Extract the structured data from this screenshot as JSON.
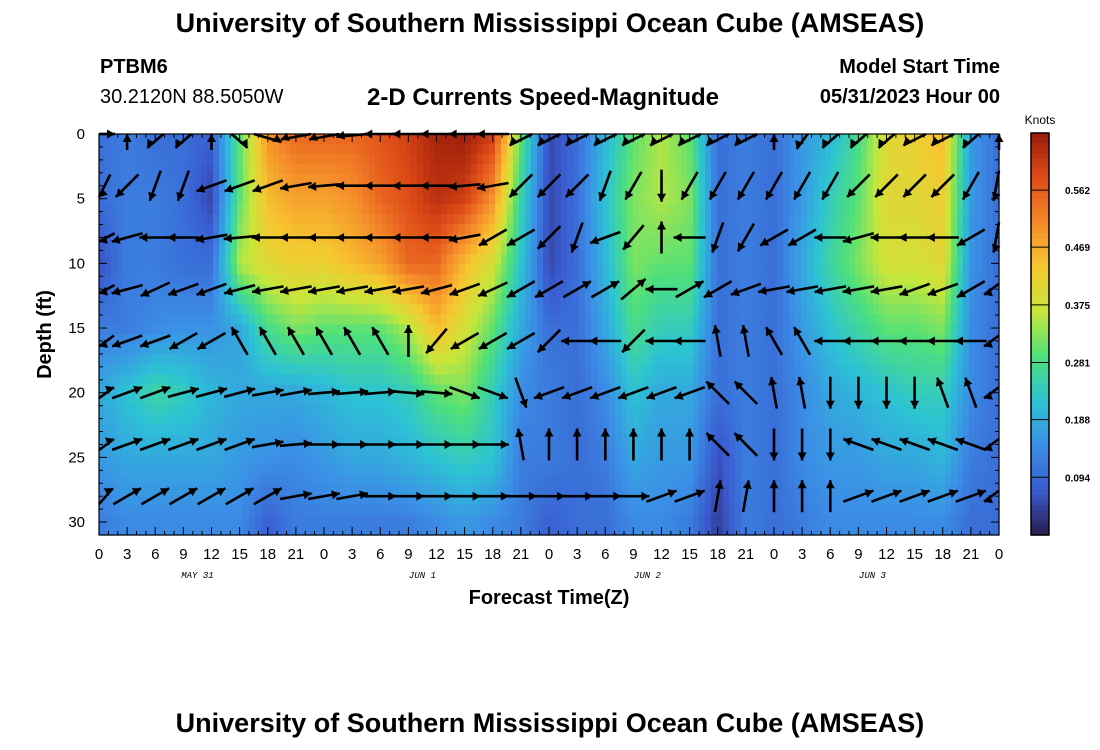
{
  "page": {
    "title": "University of Southern Mississippi Ocean Cube (AMSEAS)",
    "footer_title": "University of Southern Mississippi Ocean Cube (AMSEAS)",
    "station_id": "PTBM6",
    "station_coords": "30.2120N  88.5050W",
    "variable_title": "2-D Currents Speed-Magnitude",
    "model_start_label": "Model Start Time",
    "model_start_value": "05/31/2023 Hour 00"
  },
  "colors": {
    "colormap": [
      "#2a1b4e",
      "#3a5bd0",
      "#3b8fe6",
      "#2cc3d4",
      "#4fe07a",
      "#c8e63a",
      "#f6c730",
      "#f58a2a",
      "#de4b17",
      "#9a1a0a"
    ],
    "arrow": "#000000",
    "axis": "#000000"
  },
  "chart_data": {
    "type": "heatmap",
    "xlabel": "Forecast Time(Z)",
    "ylabel": "Depth (ft)",
    "colorbar_label": "Knots",
    "colorbar_ticks": [
      "0.094",
      "0.188",
      "0.281",
      "0.375",
      "0.469",
      "0.562"
    ],
    "colorbar_range": [
      0.0,
      0.655
    ],
    "x_hours_range": [
      0,
      96
    ],
    "x_tick_labels": [
      "0",
      "3",
      "6",
      "9",
      "12",
      "15",
      "18",
      "21",
      "0",
      "3",
      "6",
      "9",
      "12",
      "15",
      "18",
      "21",
      "0",
      "3",
      "6",
      "9",
      "12",
      "15",
      "18",
      "21",
      "0",
      "3",
      "6",
      "9",
      "12",
      "15",
      "18",
      "21",
      "0"
    ],
    "date_labels": [
      "MAY 31",
      "JUN 1",
      "JUN 2",
      "JUN 3"
    ],
    "date_label_hours": [
      10.5,
      34.5,
      58.5,
      82.5
    ],
    "y_range": [
      0,
      31
    ],
    "y_inverted": true,
    "y_ticks": [
      "0",
      "5",
      "10",
      "15",
      "20",
      "25",
      "30"
    ],
    "depths_ft": [
      0,
      5,
      10,
      15,
      20,
      25,
      30
    ],
    "hours": [
      0,
      3,
      6,
      9,
      12,
      15,
      18,
      21,
      24,
      27,
      30,
      33,
      36,
      39,
      42,
      45,
      48,
      51,
      54,
      57,
      60,
      63,
      66,
      69,
      72,
      75,
      78,
      81,
      84,
      87,
      90,
      93,
      96
    ],
    "speed_knots": [
      [
        0.1,
        0.12,
        0.1,
        0.1,
        0.08,
        0.3,
        0.5,
        0.55,
        0.55,
        0.55,
        0.57,
        0.6,
        0.64,
        0.65,
        0.6,
        0.3,
        0.05,
        0.1,
        0.2,
        0.3,
        0.35,
        0.3,
        0.1,
        0.12,
        0.1,
        0.16,
        0.2,
        0.28,
        0.4,
        0.42,
        0.45,
        0.16,
        0.1
      ],
      [
        0.1,
        0.12,
        0.12,
        0.1,
        0.05,
        0.3,
        0.45,
        0.48,
        0.48,
        0.5,
        0.55,
        0.58,
        0.62,
        0.6,
        0.5,
        0.25,
        0.05,
        0.1,
        0.22,
        0.32,
        0.35,
        0.32,
        0.1,
        0.12,
        0.1,
        0.16,
        0.24,
        0.3,
        0.4,
        0.4,
        0.42,
        0.16,
        0.1
      ],
      [
        0.06,
        0.12,
        0.12,
        0.1,
        0.1,
        0.35,
        0.4,
        0.42,
        0.42,
        0.45,
        0.48,
        0.55,
        0.55,
        0.45,
        0.38,
        0.22,
        0.05,
        0.1,
        0.2,
        0.32,
        0.3,
        0.3,
        0.1,
        0.12,
        0.1,
        0.18,
        0.26,
        0.32,
        0.38,
        0.38,
        0.4,
        0.15,
        0.1
      ],
      [
        0.12,
        0.12,
        0.14,
        0.15,
        0.15,
        0.18,
        0.28,
        0.32,
        0.3,
        0.3,
        0.3,
        0.35,
        0.45,
        0.38,
        0.3,
        0.18,
        0.1,
        0.1,
        0.18,
        0.28,
        0.24,
        0.24,
        0.1,
        0.12,
        0.1,
        0.16,
        0.22,
        0.26,
        0.3,
        0.3,
        0.32,
        0.14,
        0.1
      ],
      [
        0.18,
        0.22,
        0.26,
        0.24,
        0.2,
        0.18,
        0.18,
        0.18,
        0.2,
        0.22,
        0.22,
        0.24,
        0.3,
        0.32,
        0.24,
        0.14,
        0.12,
        0.1,
        0.14,
        0.22,
        0.18,
        0.18,
        0.1,
        0.12,
        0.1,
        0.14,
        0.18,
        0.2,
        0.22,
        0.24,
        0.24,
        0.14,
        0.1
      ],
      [
        0.16,
        0.18,
        0.18,
        0.18,
        0.18,
        0.16,
        0.15,
        0.14,
        0.16,
        0.18,
        0.18,
        0.2,
        0.22,
        0.24,
        0.22,
        0.12,
        0.12,
        0.1,
        0.12,
        0.18,
        0.16,
        0.16,
        0.06,
        0.12,
        0.1,
        0.14,
        0.16,
        0.16,
        0.18,
        0.18,
        0.2,
        0.12,
        0.1
      ],
      [
        0.12,
        0.14,
        0.14,
        0.14,
        0.14,
        0.14,
        0.08,
        0.12,
        0.12,
        0.12,
        0.12,
        0.12,
        0.14,
        0.16,
        0.14,
        0.12,
        0.08,
        0.1,
        0.1,
        0.14,
        0.14,
        0.12,
        0.04,
        0.12,
        0.1,
        0.12,
        0.14,
        0.14,
        0.14,
        0.14,
        0.14,
        0.1,
        0.1
      ]
    ],
    "arrow_rows_depth_ft": [
      0,
      4,
      8,
      12,
      16,
      20,
      24,
      28
    ],
    "arrow_hours": [
      0,
      3,
      6,
      9,
      12,
      15,
      18,
      21,
      24,
      27,
      30,
      33,
      36,
      39,
      42,
      45,
      48,
      51,
      54,
      57,
      60,
      63,
      66,
      69,
      72,
      75,
      78,
      81,
      84,
      87,
      90,
      93,
      96
    ],
    "arrow_angles_deg": [
      [
        0,
        90,
        240,
        240,
        90,
        300,
        330,
        200,
        200,
        190,
        180,
        180,
        180,
        180,
        180,
        225,
        225,
        225,
        225,
        225,
        225,
        225,
        225,
        225,
        90,
        250,
        240,
        240,
        240,
        225,
        225,
        240,
        90
      ],
      [
        225,
        225,
        250,
        250,
        200,
        200,
        200,
        190,
        185,
        180,
        180,
        180,
        180,
        185,
        190,
        225,
        225,
        225,
        250,
        240,
        270,
        240,
        240,
        240,
        240,
        240,
        240,
        225,
        225,
        225,
        225,
        240,
        250
      ],
      [
        195,
        195,
        180,
        180,
        190,
        185,
        180,
        180,
        180,
        180,
        180,
        180,
        180,
        190,
        210,
        210,
        225,
        250,
        200,
        230,
        90,
        180,
        250,
        240,
        210,
        210,
        180,
        195,
        180,
        180,
        180,
        210,
        250
      ],
      [
        195,
        195,
        205,
        200,
        200,
        195,
        190,
        190,
        190,
        190,
        190,
        190,
        195,
        200,
        205,
        210,
        210,
        30,
        30,
        40,
        180,
        30,
        210,
        200,
        190,
        190,
        190,
        190,
        190,
        200,
        200,
        210,
        200
      ],
      [
        200,
        200,
        200,
        210,
        210,
        120,
        120,
        120,
        120,
        120,
        120,
        90,
        230,
        210,
        210,
        210,
        225,
        180,
        180,
        225,
        180,
        180,
        100,
        100,
        120,
        120,
        180,
        180,
        180,
        180,
        180,
        180,
        200
      ],
      [
        20,
        20,
        20,
        15,
        15,
        15,
        10,
        10,
        5,
        5,
        5,
        355,
        355,
        340,
        340,
        290,
        200,
        200,
        200,
        200,
        200,
        200,
        135,
        135,
        100,
        100,
        270,
        270,
        270,
        270,
        110,
        110,
        200
      ],
      [
        20,
        20,
        20,
        20,
        20,
        20,
        10,
        5,
        0,
        0,
        0,
        0,
        0,
        0,
        0,
        100,
        90,
        90,
        90,
        90,
        90,
        90,
        135,
        135,
        270,
        270,
        270,
        160,
        160,
        160,
        160,
        160,
        200
      ],
      [
        30,
        30,
        30,
        30,
        30,
        30,
        30,
        10,
        10,
        10,
        0,
        0,
        0,
        0,
        0,
        0,
        0,
        0,
        0,
        0,
        20,
        20,
        80,
        80,
        90,
        90,
        90,
        20,
        20,
        20,
        20,
        20,
        200
      ]
    ]
  }
}
